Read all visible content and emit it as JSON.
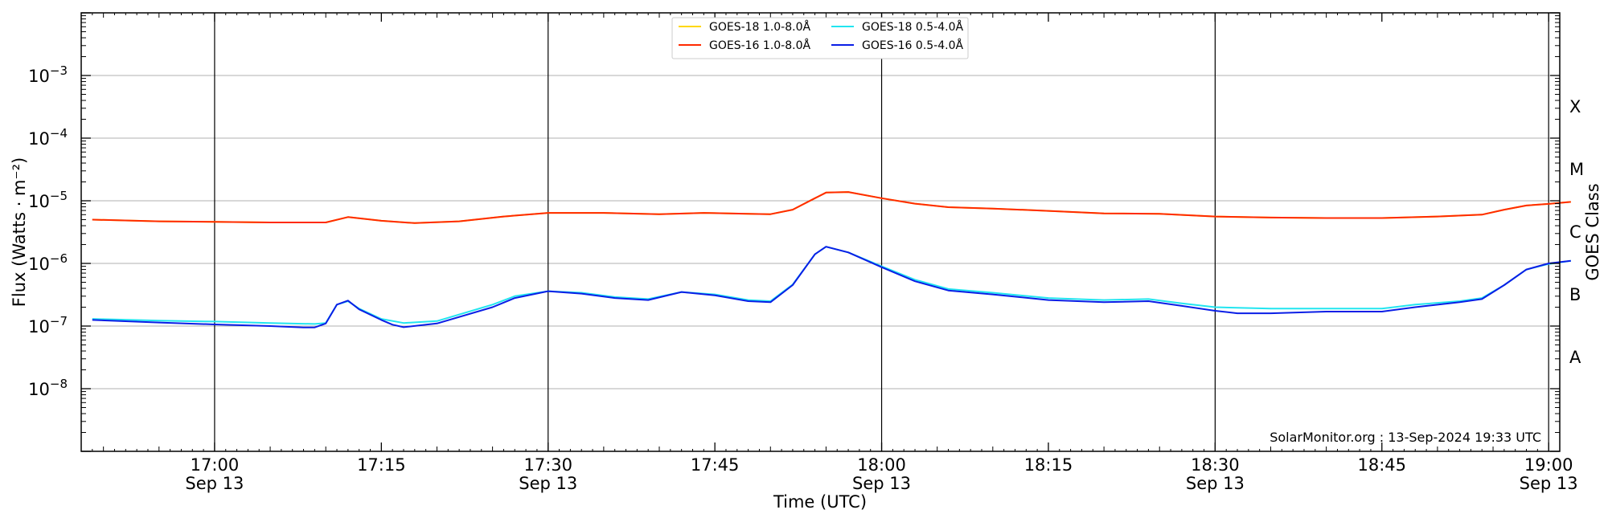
{
  "chart_data": {
    "type": "line",
    "xlabel": "Time (UTC)",
    "ylabel": "Flux (Watts · m⁻²)",
    "ylabel_right": "GOES Class",
    "yscale": "log",
    "xlim": [
      "16:48",
      "19:01"
    ],
    "ylim": [
      1e-09,
      0.01
    ],
    "grid": "horizontal",
    "legend_position": "top-center",
    "credit": "SolarMonitor.org : 13-Sep-2024 19:33 UTC",
    "x_ticks": [
      {
        "time": "17:00",
        "label": "17:00",
        "date": "Sep 13"
      },
      {
        "time": "17:15",
        "label": "17:15",
        "date": ""
      },
      {
        "time": "17:30",
        "label": "17:30",
        "date": "Sep 13"
      },
      {
        "time": "17:45",
        "label": "17:45",
        "date": ""
      },
      {
        "time": "18:00",
        "label": "18:00",
        "date": "Sep 13"
      },
      {
        "time": "18:15",
        "label": "18:15",
        "date": ""
      },
      {
        "time": "18:30",
        "label": "18:30",
        "date": "Sep 13"
      },
      {
        "time": "18:45",
        "label": "18:45",
        "date": ""
      },
      {
        "time": "19:00",
        "label": "19:00",
        "date": "Sep 13"
      }
    ],
    "vertical_lines": [
      "17:00",
      "17:30",
      "18:00",
      "18:30",
      "19:00"
    ],
    "y_ticks": [
      {
        "exp": -3,
        "base": "10",
        "sup": "−3"
      },
      {
        "exp": -4,
        "base": "10",
        "sup": "−4"
      },
      {
        "exp": -5,
        "base": "10",
        "sup": "−5"
      },
      {
        "exp": -6,
        "base": "10",
        "sup": "−6"
      },
      {
        "exp": -7,
        "base": "10",
        "sup": "−7"
      },
      {
        "exp": -8,
        "base": "10",
        "sup": "−8"
      }
    ],
    "class_labels": [
      {
        "label": "X",
        "exp": -3.5
      },
      {
        "label": "M",
        "exp": -4.5
      },
      {
        "label": "C",
        "exp": -5.5
      },
      {
        "label": "B",
        "exp": -6.5
      },
      {
        "label": "A",
        "exp": -7.5
      }
    ],
    "series": [
      {
        "name": "GOES-18 1.0-8.0Å",
        "color": "#ffd700",
        "points": [
          [
            "16:49",
            5e-06
          ],
          [
            "16:55",
            4.7e-06
          ],
          [
            "17:00",
            4.6e-06
          ],
          [
            "17:05",
            4.5e-06
          ],
          [
            "17:10",
            4.5e-06
          ],
          [
            "17:12",
            5.5e-06
          ],
          [
            "17:15",
            4.8e-06
          ],
          [
            "17:18",
            4.4e-06
          ],
          [
            "17:22",
            4.7e-06
          ],
          [
            "17:26",
            5.6e-06
          ],
          [
            "17:30",
            6.4e-06
          ],
          [
            "17:35",
            6.4e-06
          ],
          [
            "17:40",
            6.1e-06
          ],
          [
            "17:44",
            6.4e-06
          ],
          [
            "17:48",
            6.2e-06
          ],
          [
            "17:50",
            6.1e-06
          ],
          [
            "17:52",
            7.2e-06
          ],
          [
            "17:54",
            1.1e-05
          ],
          [
            "17:55",
            1.35e-05
          ],
          [
            "17:57",
            1.38e-05
          ],
          [
            "18:00",
            1.1e-05
          ],
          [
            "18:03",
            9e-06
          ],
          [
            "18:06",
            7.9e-06
          ],
          [
            "18:10",
            7.5e-06
          ],
          [
            "18:15",
            6.9e-06
          ],
          [
            "18:20",
            6.3e-06
          ],
          [
            "18:25",
            6.2e-06
          ],
          [
            "18:30",
            5.6e-06
          ],
          [
            "18:35",
            5.4e-06
          ],
          [
            "18:40",
            5.3e-06
          ],
          [
            "18:45",
            5.3e-06
          ],
          [
            "18:50",
            5.6e-06
          ],
          [
            "18:54",
            6e-06
          ],
          [
            "18:56",
            7.2e-06
          ],
          [
            "18:58",
            8.4e-06
          ],
          [
            "19:00",
            8.9e-06
          ],
          [
            "19:02",
            9.6e-06
          ]
        ]
      },
      {
        "name": "GOES-16 1.0-8.0Å",
        "color": "#ff2a00",
        "points": [
          [
            "16:49",
            5e-06
          ],
          [
            "16:55",
            4.7e-06
          ],
          [
            "17:00",
            4.6e-06
          ],
          [
            "17:05",
            4.5e-06
          ],
          [
            "17:10",
            4.5e-06
          ],
          [
            "17:12",
            5.5e-06
          ],
          [
            "17:15",
            4.8e-06
          ],
          [
            "17:18",
            4.4e-06
          ],
          [
            "17:22",
            4.7e-06
          ],
          [
            "17:26",
            5.6e-06
          ],
          [
            "17:30",
            6.4e-06
          ],
          [
            "17:35",
            6.4e-06
          ],
          [
            "17:40",
            6.1e-06
          ],
          [
            "17:44",
            6.4e-06
          ],
          [
            "17:48",
            6.2e-06
          ],
          [
            "17:50",
            6.1e-06
          ],
          [
            "17:52",
            7.2e-06
          ],
          [
            "17:54",
            1.1e-05
          ],
          [
            "17:55",
            1.35e-05
          ],
          [
            "17:57",
            1.38e-05
          ],
          [
            "18:00",
            1.1e-05
          ],
          [
            "18:03",
            9e-06
          ],
          [
            "18:06",
            7.9e-06
          ],
          [
            "18:10",
            7.5e-06
          ],
          [
            "18:15",
            6.9e-06
          ],
          [
            "18:20",
            6.3e-06
          ],
          [
            "18:25",
            6.2e-06
          ],
          [
            "18:30",
            5.6e-06
          ],
          [
            "18:35",
            5.4e-06
          ],
          [
            "18:40",
            5.3e-06
          ],
          [
            "18:45",
            5.3e-06
          ],
          [
            "18:50",
            5.6e-06
          ],
          [
            "18:54",
            6e-06
          ],
          [
            "18:56",
            7.2e-06
          ],
          [
            "18:58",
            8.4e-06
          ],
          [
            "19:00",
            8.9e-06
          ],
          [
            "19:02",
            9.6e-06
          ]
        ]
      },
      {
        "name": "GOES-18 0.5-4.0Å",
        "color": "#22e5f0",
        "points": [
          [
            "16:49",
            1.3e-07
          ],
          [
            "16:55",
            1.22e-07
          ],
          [
            "17:00",
            1.18e-07
          ],
          [
            "17:05",
            1.12e-07
          ],
          [
            "17:09",
            1.08e-07
          ],
          [
            "17:10",
            1.12e-07
          ],
          [
            "17:11",
            2.2e-07
          ],
          [
            "17:12",
            2.5e-07
          ],
          [
            "17:13",
            1.9e-07
          ],
          [
            "17:15",
            1.3e-07
          ],
          [
            "17:17",
            1.12e-07
          ],
          [
            "17:20",
            1.2e-07
          ],
          [
            "17:25",
            2.2e-07
          ],
          [
            "17:27",
            3e-07
          ],
          [
            "17:30",
            3.6e-07
          ],
          [
            "17:33",
            3.4e-07
          ],
          [
            "17:36",
            2.9e-07
          ],
          [
            "17:39",
            2.7e-07
          ],
          [
            "17:42",
            3.5e-07
          ],
          [
            "17:45",
            3.2e-07
          ],
          [
            "17:48",
            2.6e-07
          ],
          [
            "17:50",
            2.5e-07
          ],
          [
            "17:52",
            4.6e-07
          ],
          [
            "17:54",
            1.4e-06
          ],
          [
            "17:55",
            1.85e-06
          ],
          [
            "17:57",
            1.5e-06
          ],
          [
            "18:00",
            9e-07
          ],
          [
            "18:03",
            5.5e-07
          ],
          [
            "18:06",
            3.9e-07
          ],
          [
            "18:10",
            3.4e-07
          ],
          [
            "18:15",
            2.8e-07
          ],
          [
            "18:20",
            2.6e-07
          ],
          [
            "18:24",
            2.7e-07
          ],
          [
            "18:27",
            2.3e-07
          ],
          [
            "18:30",
            2e-07
          ],
          [
            "18:35",
            1.9e-07
          ],
          [
            "18:40",
            1.9e-07
          ],
          [
            "18:45",
            1.9e-07
          ],
          [
            "18:48",
            2.2e-07
          ],
          [
            "18:52",
            2.5e-07
          ],
          [
            "18:54",
            2.8e-07
          ],
          [
            "18:56",
            4.5e-07
          ],
          [
            "18:58",
            8e-07
          ],
          [
            "19:00",
            9.8e-07
          ],
          [
            "19:02",
            1.1e-06
          ]
        ]
      },
      {
        "name": "GOES-16 0.5-4.0Å",
        "color": "#0a1ee6",
        "points": [
          [
            "16:49",
            1.25e-07
          ],
          [
            "16:55",
            1.14e-07
          ],
          [
            "17:00",
            1.06e-07
          ],
          [
            "17:05",
            1e-07
          ],
          [
            "17:08",
            9.5e-08
          ],
          [
            "17:09",
            9.5e-08
          ],
          [
            "17:10",
            1.1e-07
          ],
          [
            "17:11",
            2.2e-07
          ],
          [
            "17:12",
            2.55e-07
          ],
          [
            "17:13",
            1.85e-07
          ],
          [
            "17:15",
            1.25e-07
          ],
          [
            "17:16",
            1.05e-07
          ],
          [
            "17:17",
            9.6e-08
          ],
          [
            "17:20",
            1.1e-07
          ],
          [
            "17:25",
            2e-07
          ],
          [
            "17:27",
            2.8e-07
          ],
          [
            "17:30",
            3.6e-07
          ],
          [
            "17:33",
            3.3e-07
          ],
          [
            "17:36",
            2.8e-07
          ],
          [
            "17:39",
            2.6e-07
          ],
          [
            "17:42",
            3.5e-07
          ],
          [
            "17:45",
            3.1e-07
          ],
          [
            "17:48",
            2.5e-07
          ],
          [
            "17:50",
            2.4e-07
          ],
          [
            "17:52",
            4.5e-07
          ],
          [
            "17:54",
            1.4e-06
          ],
          [
            "17:55",
            1.85e-06
          ],
          [
            "17:57",
            1.5e-06
          ],
          [
            "18:00",
            8.7e-07
          ],
          [
            "18:03",
            5.2e-07
          ],
          [
            "18:06",
            3.7e-07
          ],
          [
            "18:10",
            3.2e-07
          ],
          [
            "18:15",
            2.6e-07
          ],
          [
            "18:20",
            2.4e-07
          ],
          [
            "18:24",
            2.5e-07
          ],
          [
            "18:27",
            2.1e-07
          ],
          [
            "18:30",
            1.75e-07
          ],
          [
            "18:32",
            1.6e-07
          ],
          [
            "18:35",
            1.6e-07
          ],
          [
            "18:40",
            1.7e-07
          ],
          [
            "18:45",
            1.7e-07
          ],
          [
            "18:48",
            2e-07
          ],
          [
            "18:52",
            2.4e-07
          ],
          [
            "18:54",
            2.7e-07
          ],
          [
            "18:56",
            4.5e-07
          ],
          [
            "18:58",
            8e-07
          ],
          [
            "19:00",
            1e-06
          ],
          [
            "19:02",
            1.1e-06
          ]
        ]
      }
    ]
  }
}
